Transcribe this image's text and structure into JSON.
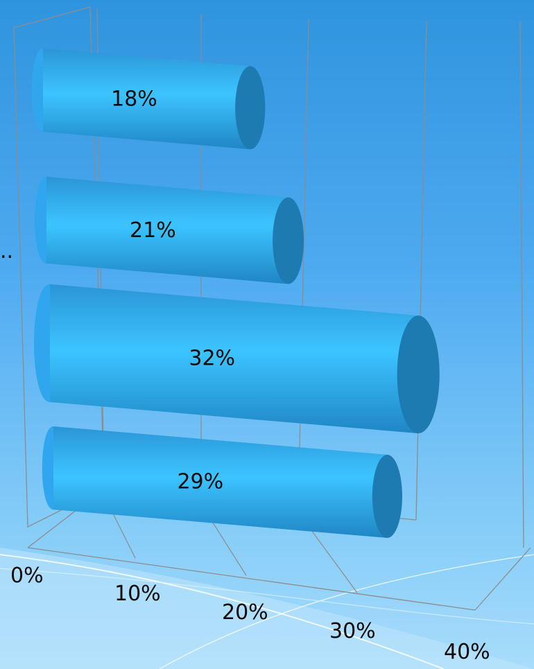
{
  "chart_data": {
    "type": "bar",
    "orientation": "horizontal",
    "style": "3d-cylinder",
    "categories": [
      "",
      "",
      "",
      ""
    ],
    "values": [
      18,
      21,
      32,
      29
    ],
    "data_labels": [
      "18%",
      "21%",
      "32%",
      "29%"
    ],
    "x_ticks": [
      "0%",
      "10%",
      "20%",
      "30%",
      "40%"
    ],
    "xlim": [
      0,
      40
    ],
    "truncated_category_text": "..",
    "grid": true,
    "colors": {
      "bar_body": "#2fa6ee",
      "bar_highlight": "#3cc4ff",
      "bar_end": "#1e7bb1",
      "gridline": "#8c8c8c"
    }
  }
}
